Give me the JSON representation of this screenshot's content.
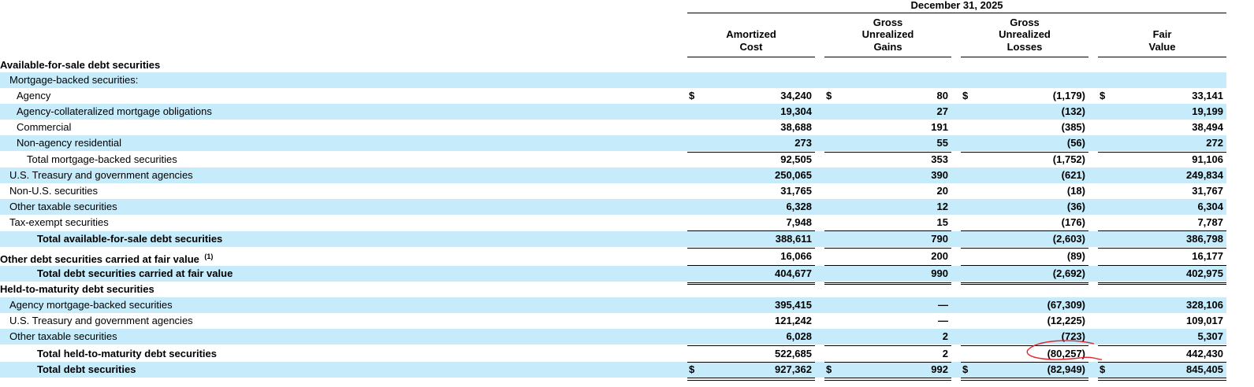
{
  "table": {
    "period": "December 31, 2025",
    "columns": [
      [
        "Amortized",
        "Cost"
      ],
      [
        "Gross",
        "Unrealized",
        "Gains"
      ],
      [
        "Gross",
        "Unrealized",
        "Losses"
      ],
      [
        "Fair",
        "Value"
      ]
    ],
    "rows": [
      {
        "label": "Available-for-sale debt securities"
      },
      {
        "label": "Mortgage-backed securities:"
      },
      {
        "label": "Agency",
        "currency": [
          "$",
          "$",
          "$",
          "$"
        ],
        "values": [
          "34,240",
          "80",
          "(1,179)",
          "33,141"
        ]
      },
      {
        "label": "Agency-collateralized mortgage obligations",
        "values": [
          "19,304",
          "27",
          "(132)",
          "19,199"
        ]
      },
      {
        "label": "Commercial",
        "values": [
          "38,688",
          "191",
          "(385)",
          "38,494"
        ]
      },
      {
        "label": "Non-agency residential",
        "values": [
          "273",
          "55",
          "(56)",
          "272"
        ]
      },
      {
        "label": "Total mortgage-backed securities",
        "values": [
          "92,505",
          "353",
          "(1,752)",
          "91,106"
        ]
      },
      {
        "label": "U.S. Treasury and government agencies",
        "values": [
          "250,065",
          "390",
          "(621)",
          "249,834"
        ]
      },
      {
        "label": "Non-U.S. securities",
        "values": [
          "31,765",
          "20",
          "(18)",
          "31,767"
        ]
      },
      {
        "label": "Other taxable securities",
        "values": [
          "6,328",
          "12",
          "(36)",
          "6,304"
        ]
      },
      {
        "label": "Tax-exempt securities",
        "values": [
          "7,948",
          "15",
          "(176)",
          "7,787"
        ]
      },
      {
        "label": "Total available-for-sale debt securities",
        "values": [
          "388,611",
          "790",
          "(2,603)",
          "386,798"
        ]
      },
      {
        "label": "Other debt securities carried at fair value",
        "footnote": "(1)",
        "values": [
          "16,066",
          "200",
          "(89)",
          "16,177"
        ]
      },
      {
        "label": "Total debt securities carried at fair value",
        "values": [
          "404,677",
          "990",
          "(2,692)",
          "402,975"
        ]
      },
      {
        "label": "Held-to-maturity debt securities"
      },
      {
        "label": "Agency mortgage-backed securities",
        "values": [
          "395,415",
          "—",
          "(67,309)",
          "328,106"
        ]
      },
      {
        "label": "U.S. Treasury and government agencies",
        "values": [
          "121,242",
          "—",
          "(12,225)",
          "109,017"
        ]
      },
      {
        "label": "Other taxable securities",
        "values": [
          "6,028",
          "2",
          "(723)",
          "5,307"
        ]
      },
      {
        "label": "Total held-to-maturity debt securities",
        "values": [
          "522,685",
          "2",
          "(80,257)",
          "442,430"
        ]
      },
      {
        "label": "Total debt securities",
        "currency": [
          "$",
          "$",
          "$",
          "$"
        ],
        "values": [
          "927,362",
          "992",
          "(82,949)",
          "845,405"
        ]
      }
    ]
  }
}
